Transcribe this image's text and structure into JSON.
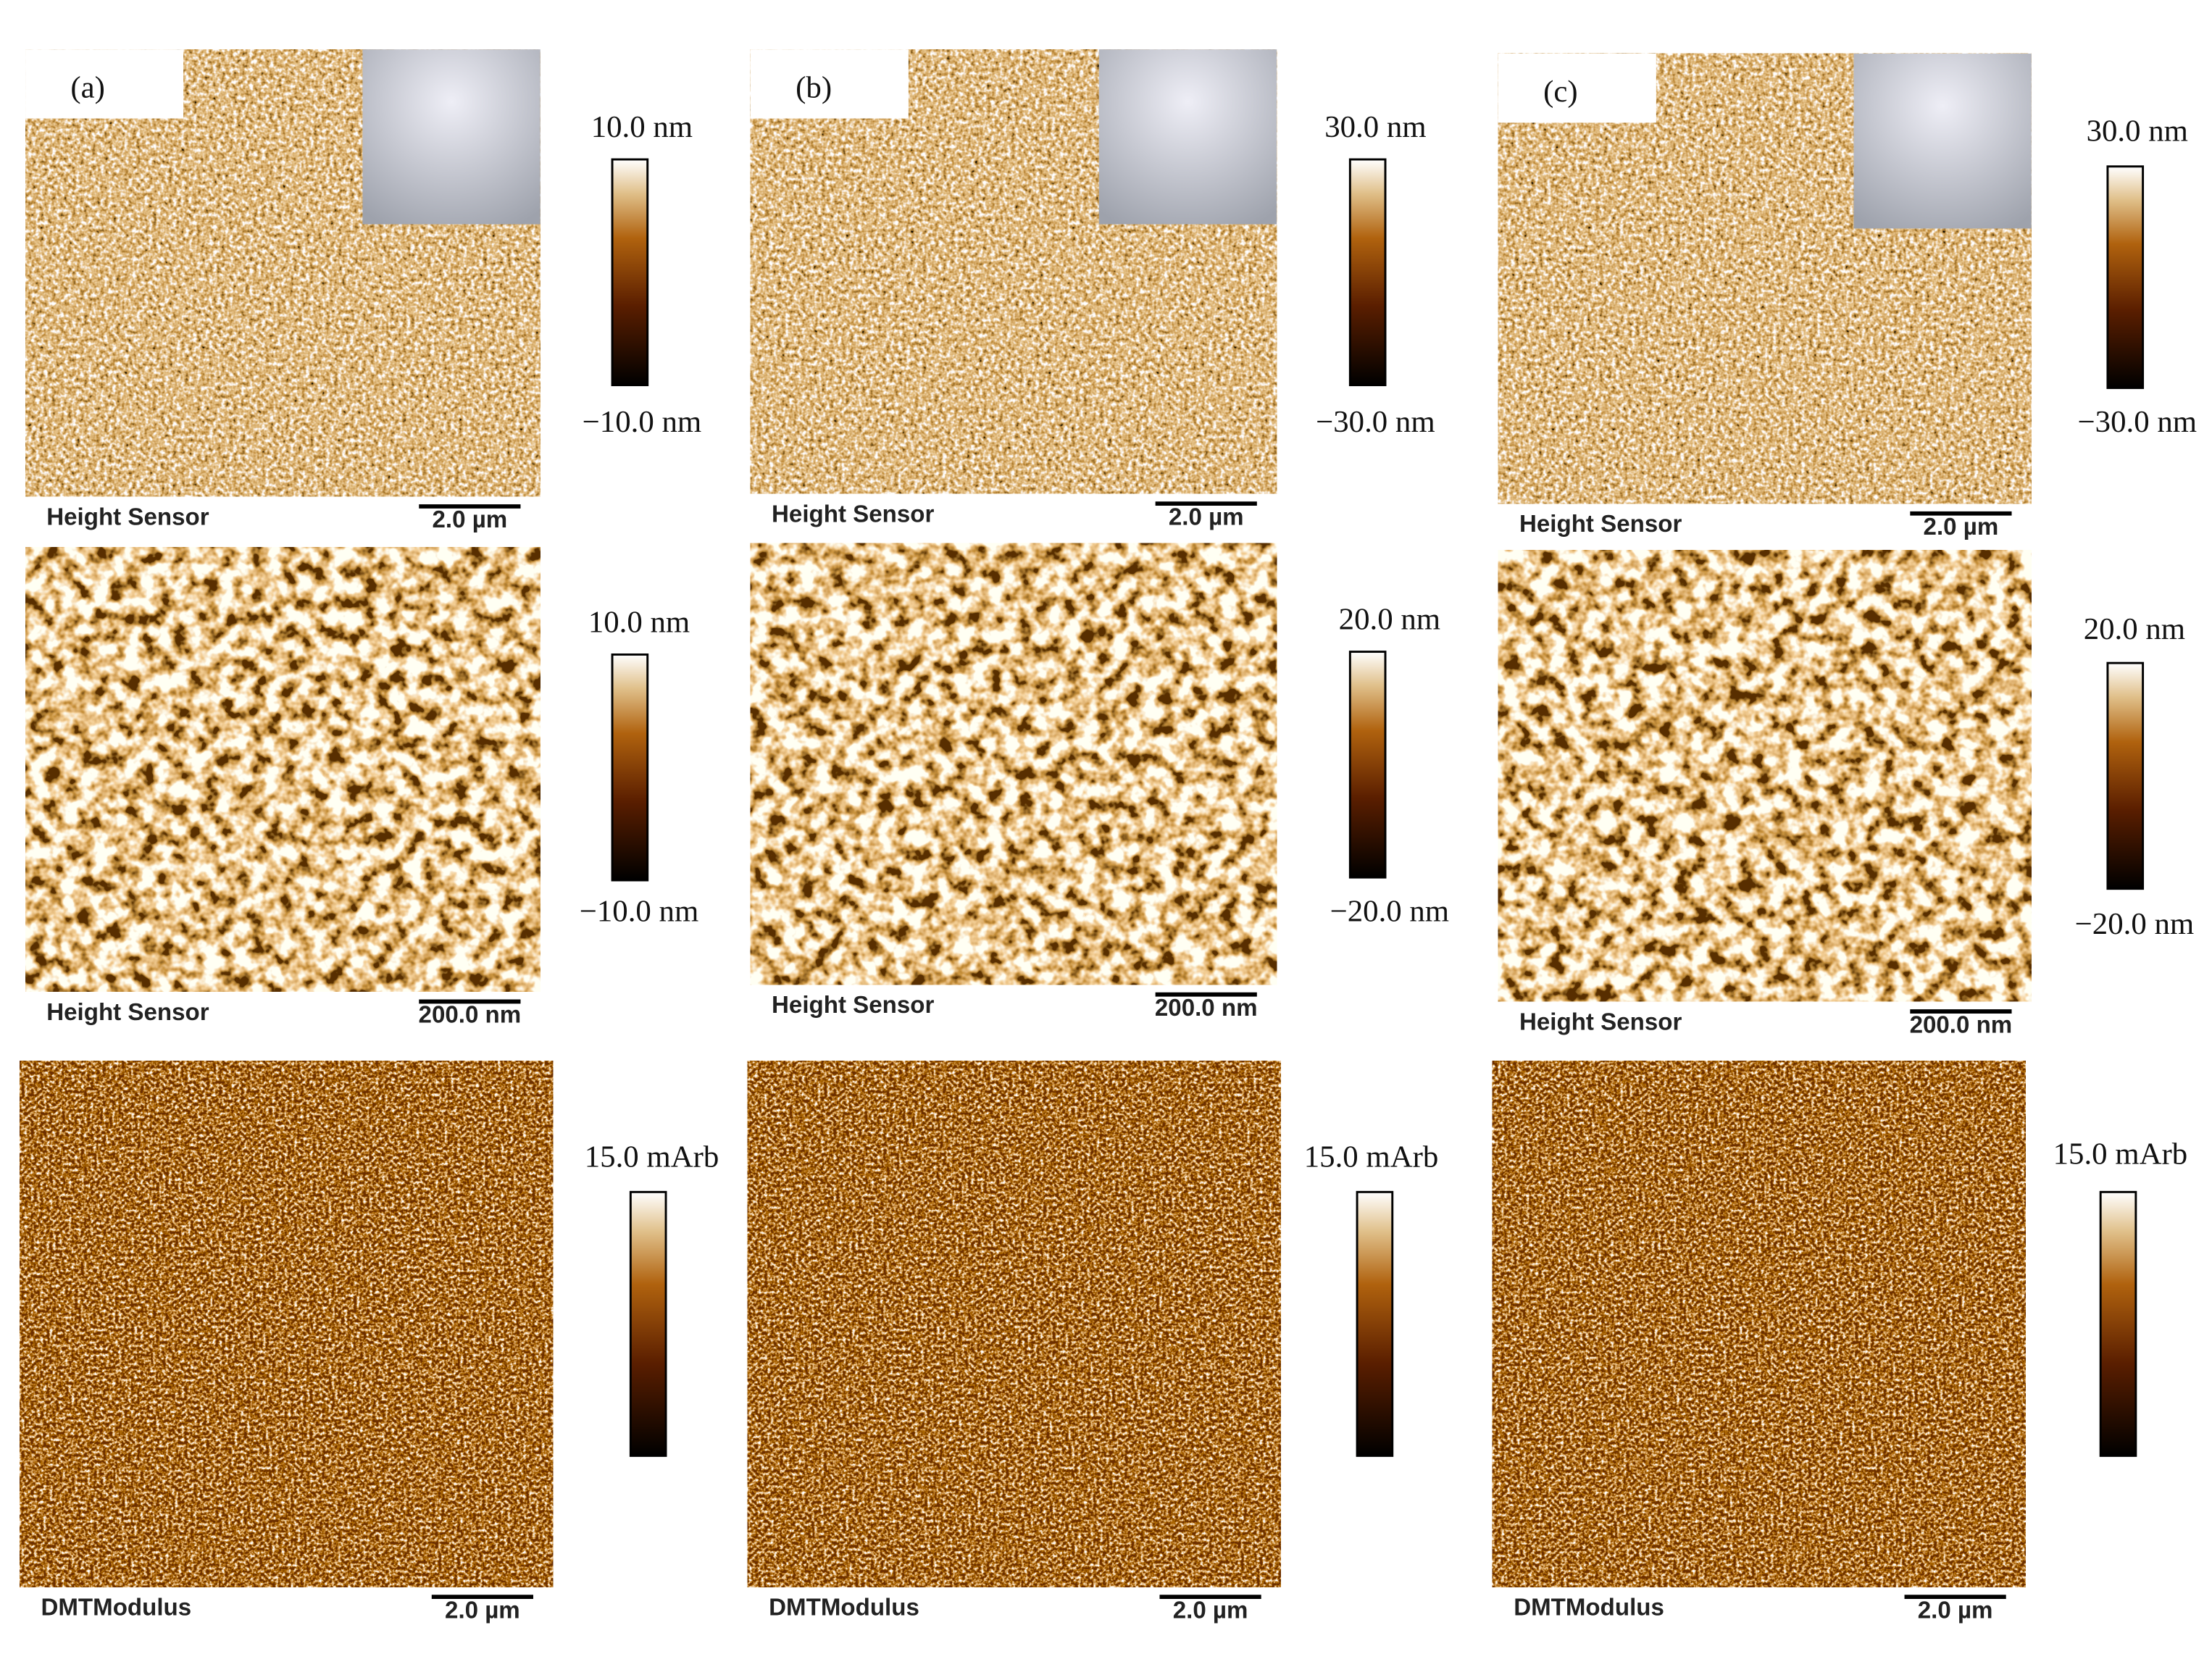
{
  "panels": [
    {
      "label": "(a)",
      "rows": [
        {
          "sensor": "Height Sensor",
          "scale": "2.0 µm",
          "max": "10.0 nm",
          "min": "−10.0 nm"
        },
        {
          "sensor": "Height Sensor",
          "scale": "200.0 nm",
          "max": "10.0 nm",
          "min": "−10.0 nm"
        },
        {
          "sensor": "DMTModulus",
          "scale": "2.0 µm",
          "max": "15.0 mArb"
        }
      ]
    },
    {
      "label": "(b)",
      "rows": [
        {
          "sensor": "Height Sensor",
          "scale": "2.0 µm",
          "max": "30.0 nm",
          "min": "−30.0 nm"
        },
        {
          "sensor": "Height Sensor",
          "scale": "200.0 nm",
          "max": "20.0 nm",
          "min": "−20.0 nm"
        },
        {
          "sensor": "DMTModulus",
          "scale": "2.0 µm",
          "max": "15.0 mArb"
        }
      ]
    },
    {
      "label": "(c)",
      "rows": [
        {
          "sensor": "Height Sensor",
          "scale": "2.0 µm",
          "max": "30.0 nm",
          "min": "−30.0 nm"
        },
        {
          "sensor": "Height Sensor",
          "scale": "200.0 nm",
          "max": "20.0 nm",
          "min": "−20.0 nm"
        },
        {
          "sensor": "DMTModulus",
          "scale": "2.0 µm",
          "max": "15.0 mArb"
        }
      ]
    }
  ]
}
